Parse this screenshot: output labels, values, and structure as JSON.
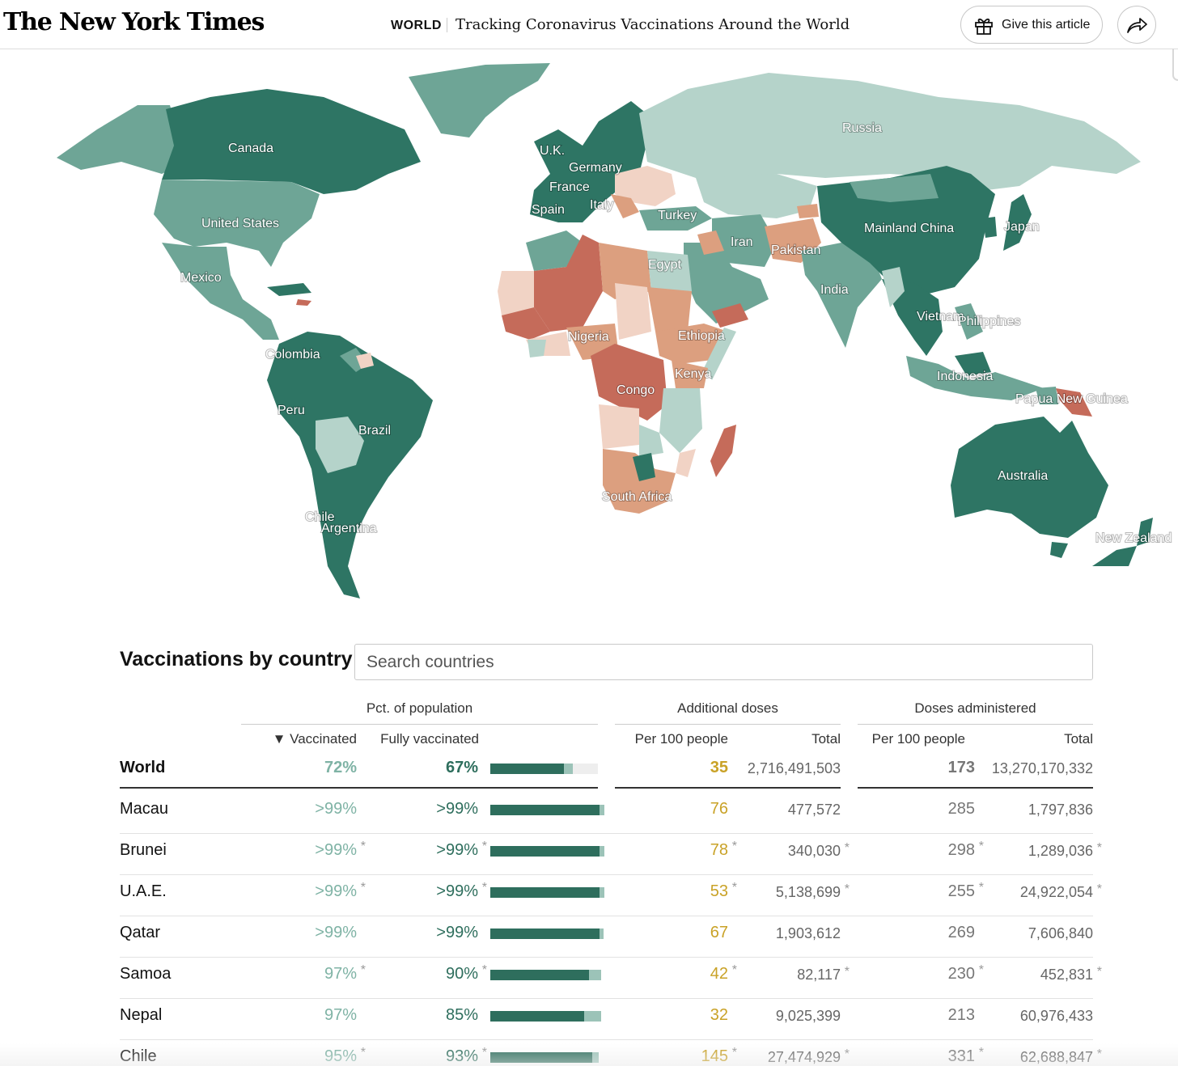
{
  "header": {
    "logo": "The New York Times",
    "section": "WORLD",
    "headline": "Tracking Coronavirus Vaccinations Around the World",
    "gift_label": "Give this article"
  },
  "colors": {
    "high": "#2e7564",
    "mid_high": "#6ea596",
    "mid": "#b5d3ca",
    "low": "#f1d3c5",
    "lower": "#dc9f7f",
    "lowest": "#c56b5a"
  },
  "map_labels": [
    "Russia",
    "Canada",
    "U.K.",
    "Germany",
    "France",
    "Spain",
    "Italy",
    "Turkey",
    "United States",
    "Iran",
    "Pakistan",
    "Mainland China",
    "Japan",
    "Mexico",
    "Egypt",
    "India",
    "Vietnam",
    "Philippines",
    "Nigeria",
    "Ethiopia",
    "Colombia",
    "Kenya",
    "Indonesia",
    "Congo",
    "Papua New Guinea",
    "Peru",
    "Brazil",
    "Australia",
    "South Africa",
    "Chile",
    "Argentina",
    "New Zealand"
  ],
  "table": {
    "title": "Vaccinations by country",
    "search_placeholder": "Search countries",
    "groups": {
      "pct": "Pct. of population",
      "additional": "Additional doses",
      "doses": "Doses administered"
    },
    "columns": {
      "vaccinated": "▼ Vaccinated",
      "fully": "Fully vaccinated",
      "add_per100": "Per 100 people",
      "add_total": "Total",
      "dose_per100": "Per 100 people",
      "dose_total": "Total"
    },
    "world": {
      "name": "World",
      "vaccinated": "72%",
      "fully": "67%",
      "add_per100": "35",
      "add_total": "2,716,491,503",
      "dose_per100": "173",
      "dose_total": "13,270,170,332",
      "bar_fully": 0.67,
      "bar_vaccinated": 0.72
    },
    "rows": [
      {
        "name": "Macau",
        "vaccinated": ">99%",
        "fully": ">99%",
        "add_per100": "76",
        "add_total": "477,572",
        "dose_per100": "285",
        "dose_total": "1,797,836",
        "bar_fully": 0.99,
        "bar_vaccinated": 1.0,
        "asterisk": ""
      },
      {
        "name": "Brunei",
        "vaccinated": ">99%",
        "fully": ">99%",
        "add_per100": "78",
        "add_total": "340,030",
        "dose_per100": "298",
        "dose_total": "1,289,036",
        "bar_fully": 0.99,
        "bar_vaccinated": 1.0,
        "asterisk": "*"
      },
      {
        "name": "U.A.E.",
        "vaccinated": ">99%",
        "fully": ">99%",
        "add_per100": "53",
        "add_total": "5,138,699",
        "dose_per100": "255",
        "dose_total": "24,922,054",
        "bar_fully": 0.99,
        "bar_vaccinated": 1.0,
        "asterisk": "*"
      },
      {
        "name": "Qatar",
        "vaccinated": ">99%",
        "fully": ">99%",
        "add_per100": "67",
        "add_total": "1,903,612",
        "dose_per100": "269",
        "dose_total": "7,606,840",
        "bar_fully": 0.99,
        "bar_vaccinated": 0.99,
        "asterisk": ""
      },
      {
        "name": "Samoa",
        "vaccinated": "97%",
        "fully": "90%",
        "add_per100": "42",
        "add_total": "82,117",
        "dose_per100": "230",
        "dose_total": "452,831",
        "bar_fully": 0.9,
        "bar_vaccinated": 0.97,
        "asterisk": "*"
      },
      {
        "name": "Nepal",
        "vaccinated": "97%",
        "fully": "85%",
        "add_per100": "32",
        "add_total": "9,025,399",
        "dose_per100": "213",
        "dose_total": "60,976,433",
        "bar_fully": 0.85,
        "bar_vaccinated": 0.97,
        "asterisk": ""
      },
      {
        "name": "Chile",
        "vaccinated": "95%",
        "fully": "93%",
        "add_per100": "145",
        "add_total": "27,474,929",
        "dose_per100": "331",
        "dose_total": "62,688,847",
        "bar_fully": 0.93,
        "bar_vaccinated": 0.95,
        "asterisk": "*"
      }
    ]
  }
}
